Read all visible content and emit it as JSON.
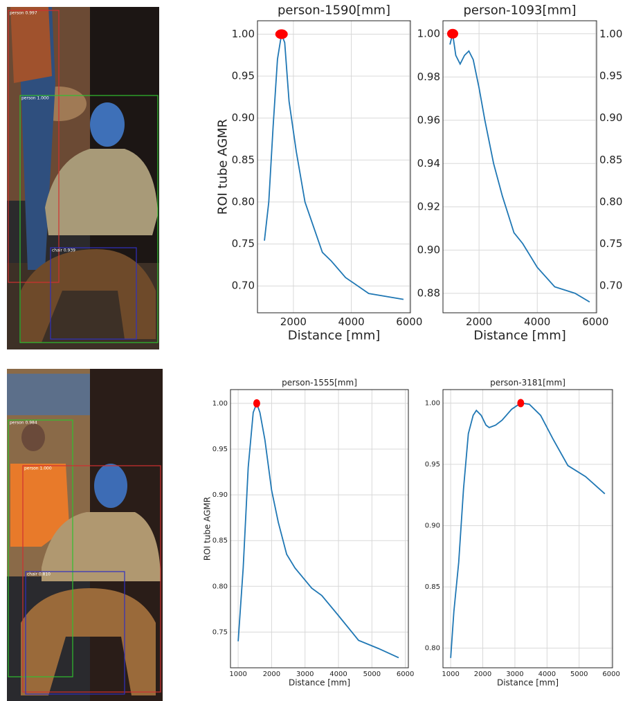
{
  "chart_data": [
    {
      "type": "line",
      "title": "person-1590[mm]",
      "xlabel": "Distance [mm]",
      "ylabel": "ROI tube AGMR",
      "x": [
        1000,
        1150,
        1300,
        1450,
        1590,
        1700,
        1850,
        2100,
        2400,
        2700,
        3000,
        3300,
        3800,
        4600,
        5800
      ],
      "series": [
        {
          "color": "#1f77b4",
          "values": [
            0.754,
            0.8,
            0.89,
            0.97,
            1.0,
            0.99,
            0.92,
            0.86,
            0.8,
            0.77,
            0.74,
            0.73,
            0.71,
            0.691,
            0.684
          ]
        }
      ],
      "peak": {
        "x": 1590,
        "y": 1.0,
        "color": "#ff0000"
      },
      "xlim": [
        760,
        6040
      ],
      "ylim": [
        0.668,
        1.016
      ],
      "xticks": [
        2000,
        4000,
        6000
      ],
      "yticks": [
        {
          "value": 0.7,
          "label": "0.70"
        },
        0.75,
        {
          "value": 0.8,
          "label": "0.80"
        },
        0.85,
        {
          "value": 0.9,
          "label": "0.90"
        },
        0.95,
        {
          "value": 1.0,
          "label": "1.00"
        }
      ],
      "grid": true
    },
    {
      "type": "line",
      "title": "person-1093[mm]",
      "xlabel": "Distance [mm]",
      "x": [
        1000,
        1093,
        1200,
        1350,
        1500,
        1650,
        1800,
        2000,
        2200,
        2500,
        2800,
        3200,
        3500,
        4000,
        4600,
        5300,
        5800
      ],
      "series": [
        {
          "color": "#1f77b4",
          "values": [
            0.995,
            1.0,
            0.99,
            0.986,
            0.99,
            0.992,
            0.988,
            0.975,
            0.96,
            0.94,
            0.925,
            0.908,
            0.903,
            0.892,
            0.883,
            0.88,
            0.876
          ]
        }
      ],
      "peak": {
        "x": 1093,
        "y": 1.0,
        "color": "#ff0000"
      },
      "xlim": [
        760,
        6040
      ],
      "ylim": [
        0.871,
        1.006
      ],
      "xticks": [
        2000,
        4000,
        6000
      ],
      "yticks": [
        0.88,
        {
          "value": 0.9,
          "label": "0.90"
        },
        0.92,
        0.94,
        0.96,
        0.98,
        {
          "value": 1.0,
          "label": "1.00"
        }
      ],
      "grid": true
    },
    {
      "type": "line",
      "title": "person-1555[mm]",
      "xlabel": "Distance [mm]",
      "ylabel": "ROI tube AGMR",
      "x": [
        1000,
        1150,
        1300,
        1450,
        1555,
        1650,
        1800,
        2000,
        2200,
        2450,
        2700,
        3200,
        3500,
        4000,
        4600,
        5200,
        5800
      ],
      "series": [
        {
          "color": "#1f77b4",
          "values": [
            0.74,
            0.82,
            0.93,
            0.99,
            1.0,
            0.99,
            0.96,
            0.905,
            0.87,
            0.835,
            0.82,
            0.798,
            0.79,
            0.768,
            0.741,
            0.732,
            0.722
          ]
        }
      ],
      "peak": {
        "x": 1555,
        "y": 1.0,
        "color": "#ff0000"
      },
      "xlim": [
        770,
        6090
      ],
      "ylim": [
        0.711,
        1.015
      ],
      "xticks": [
        1000,
        2000,
        3000,
        4000,
        5000,
        6000
      ],
      "yticks": [
        0.75,
        {
          "value": 0.8,
          "label": "0.80"
        },
        0.85,
        {
          "value": 0.9,
          "label": "0.90"
        },
        0.95,
        {
          "value": 1.0,
          "label": "1.00"
        }
      ],
      "grid": true
    },
    {
      "type": "line",
      "title": "person-3181[mm]",
      "xlabel": "Distance [mm]",
      "x": [
        1000,
        1100,
        1250,
        1400,
        1550,
        1700,
        1800,
        1950,
        2100,
        2200,
        2400,
        2600,
        2900,
        3181,
        3450,
        3800,
        4200,
        4650,
        5200,
        5800
      ],
      "series": [
        {
          "color": "#1f77b4",
          "values": [
            0.792,
            0.83,
            0.87,
            0.93,
            0.975,
            0.99,
            0.994,
            0.99,
            0.982,
            0.98,
            0.982,
            0.986,
            0.995,
            1.0,
            0.999,
            0.99,
            0.97,
            0.949,
            0.94,
            0.926
          ]
        }
      ],
      "peak": {
        "x": 3181,
        "y": 1.0,
        "color": "#ff0000"
      },
      "xlim": [
        760,
        6040
      ],
      "ylim": [
        0.784,
        1.011
      ],
      "xticks": [
        1000,
        2000,
        3000,
        4000,
        5000,
        6000
      ],
      "yticks": [
        {
          "value": 0.8,
          "label": "0.80"
        },
        0.85,
        {
          "value": 0.9,
          "label": "0.90"
        },
        0.95,
        {
          "value": 1.0,
          "label": "1.00"
        }
      ],
      "grid": true
    },
    {
      "type": "line",
      "ylim": [
        0.668,
        1.016
      ],
      "yticks": [
        {
          "value": 0.7,
          "label": "0.70"
        },
        0.75,
        {
          "value": 0.8,
          "label": "0.80"
        },
        0.85,
        {
          "value": 0.9,
          "label": "0.90"
        },
        0.95,
        {
          "value": 1.0,
          "label": "1.00"
        }
      ]
    }
  ],
  "photos": [
    {
      "labels": [
        "person 0.997",
        "person 1.000",
        "chair 0.939"
      ]
    },
    {
      "labels": [
        "person 0.984",
        "person 1.000",
        "chair 0.810"
      ]
    }
  ]
}
